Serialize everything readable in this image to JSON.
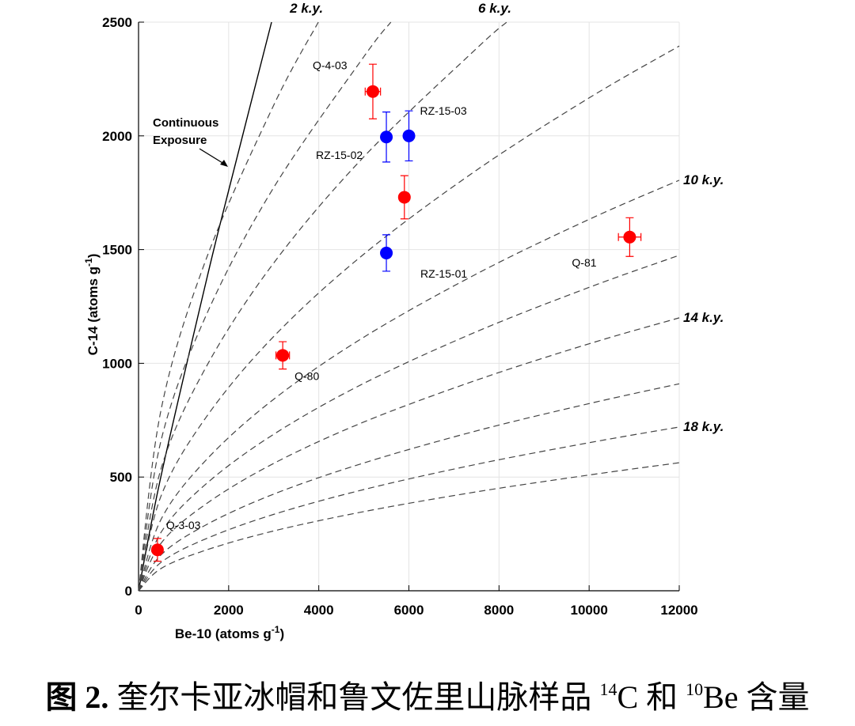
{
  "chart_data": {
    "type": "scatter",
    "x_label": {
      "text": "Be-10 (atoms g",
      "sup": "-1",
      "end": ")"
    },
    "y_label": {
      "text": "C-14 (atoms g",
      "sup": "-1",
      "end": ")"
    },
    "xlim": [
      0,
      12000
    ],
    "ylim": [
      0,
      2500
    ],
    "xticks": [
      0,
      2000,
      4000,
      6000,
      8000,
      10000,
      12000
    ],
    "yticks": [
      0,
      500,
      1000,
      1500,
      2000,
      2500
    ],
    "grid": true,
    "series": [
      {
        "name": null,
        "color": "#000000",
        "dashed": false,
        "x": [
          0,
          500,
          1500,
          2000,
          2952
        ],
        "values": [
          0,
          505,
          1360,
          1760,
          2500
        ]
      },
      {
        "name": "2 k.y.",
        "color": "#444444",
        "dashed": true,
        "x": [
          0,
          500,
          1500,
          3000,
          3990
        ],
        "values": [
          0,
          796,
          1458,
          2135,
          2500
        ]
      },
      {
        "name": null,
        "color": "#444444",
        "dashed": true,
        "x": [
          0,
          500,
          1500,
          3000,
          5000,
          5600
        ],
        "values": [
          0,
          661,
          1211,
          1773,
          2348,
          2500
        ]
      },
      {
        "name": "6 k.y.",
        "color": "#444444",
        "dashed": true,
        "x": [
          0,
          500,
          1500,
          3000,
          5000,
          7500,
          8170
        ],
        "values": [
          0,
          537,
          984,
          1441,
          1908,
          2384,
          2500
        ]
      },
      {
        "name": null,
        "color": "#444444",
        "dashed": true,
        "x": [
          0,
          500,
          1500,
          3000,
          5000,
          7500,
          10000,
          12000
        ],
        "values": [
          0,
          417,
          763,
          1118,
          1480,
          1849,
          2167,
          2395
        ]
      },
      {
        "name": "10 k.y.",
        "color": "#444444",
        "dashed": true,
        "x": [
          0,
          500,
          1500,
          3000,
          5000,
          7500,
          10000,
          12000
        ],
        "values": [
          0,
          314,
          575,
          842,
          1115,
          1393,
          1633,
          1805
        ]
      },
      {
        "name": null,
        "color": "#444444",
        "dashed": true,
        "x": [
          0,
          500,
          1500,
          3000,
          5000,
          7500,
          10000,
          12000
        ],
        "values": [
          0,
          257,
          470,
          688,
          912,
          1139,
          1334,
          1475
        ]
      },
      {
        "name": "14 k.y.",
        "color": "#444444",
        "dashed": true,
        "x": [
          0,
          500,
          1500,
          3000,
          5000,
          7500,
          10000,
          12000
        ],
        "values": [
          0,
          209,
          382,
          560,
          742,
          926,
          1086,
          1200
        ]
      },
      {
        "name": null,
        "color": "#444444",
        "dashed": true,
        "x": [
          0,
          500,
          1500,
          3000,
          5000,
          7500,
          10000,
          12000
        ],
        "values": [
          0,
          158,
          290,
          425,
          562,
          703,
          823,
          910
        ]
      },
      {
        "name": "18 k.y.",
        "color": "#444444",
        "dashed": true,
        "x": [
          0,
          500,
          1500,
          3000,
          5000,
          7500,
          10000,
          12000
        ],
        "values": [
          0,
          125,
          229,
          336,
          445,
          556,
          651,
          720
        ]
      },
      {
        "name": null,
        "color": "#444444",
        "dashed": true,
        "x": [
          0,
          500,
          1500,
          3000,
          5000,
          7500,
          10000,
          12000
        ],
        "values": [
          0,
          98,
          179,
          263,
          348,
          435,
          509,
          563
        ]
      }
    ],
    "points": {
      "labels": [
        "Q-4-03",
        "RZ-15-02",
        "RZ-15-03",
        null,
        "RZ-15-01",
        "Q-81",
        "Q-80",
        "Q-3-03"
      ],
      "colors": [
        "#ff0000",
        "#0000ff",
        "#0000ff",
        "#ff0000",
        "#0000ff",
        "#ff0000",
        "#ff0000",
        "#ff0000"
      ],
      "x": [
        5200,
        5500,
        6000,
        5900,
        5500,
        10900,
        3200,
        420
      ],
      "values": [
        2195,
        1995,
        2000,
        1730,
        1485,
        1555,
        1035,
        180
      ],
      "xerr": [
        170,
        0,
        0,
        100,
        0,
        250,
        150,
        100
      ],
      "yerr": [
        120,
        110,
        110,
        95,
        80,
        85,
        60,
        50
      ]
    },
    "annotation": [
      "Continuous",
      "Exposure"
    ]
  },
  "caption": {
    "prefix": "图 2.",
    "text": "奎尔卡亚冰帽和鲁文佐里山脉样品",
    "sup1": "14",
    "mid": "C 和",
    "sup2": "10",
    "end": "Be 含量"
  }
}
